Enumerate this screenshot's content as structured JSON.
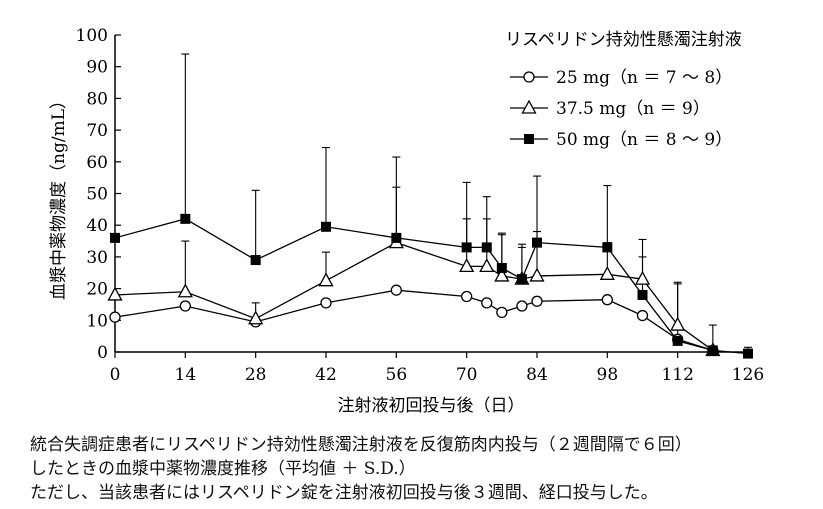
{
  "chart_data": {
    "type": "line",
    "xlabel": "注射液初回投与後（日）",
    "ylabel": "血漿中薬物濃度（ng/mL）",
    "xlim": [
      0,
      126
    ],
    "ylim": [
      0,
      100
    ],
    "xticks": [
      0,
      14,
      28,
      42,
      56,
      70,
      84,
      98,
      112,
      126
    ],
    "yticks": [
      0,
      10,
      20,
      30,
      40,
      50,
      60,
      70,
      80,
      90,
      100
    ],
    "grid": false,
    "legend_title": "リスペリドン持効性懸濁注射液",
    "legend_position": "top-right",
    "series": [
      {
        "name": "25 mg（n ＝ 7 〜 8）",
        "marker": "circle-open",
        "x": [
          0,
          14,
          28,
          42,
          56,
          70,
          74,
          77,
          81,
          84,
          98,
          105,
          112,
          119
        ],
        "y": [
          11,
          14.5,
          9.5,
          15.5,
          19.5,
          17.5,
          15.5,
          12.5,
          14.5,
          16,
          16.5,
          11.5,
          4,
          0.5
        ],
        "err": [
          0,
          0,
          0,
          0,
          0,
          0,
          0,
          0,
          0,
          0,
          0,
          0,
          0,
          0
        ]
      },
      {
        "name": "37.5 mg（n ＝ 9）",
        "marker": "triangle-open",
        "x": [
          0,
          14,
          28,
          42,
          56,
          70,
          74,
          77,
          81,
          84,
          98,
          105,
          112,
          119
        ],
        "y": [
          18,
          19,
          10.5,
          22.5,
          34.5,
          27,
          27,
          24,
          23,
          24,
          24.5,
          23,
          8.5,
          0.5
        ],
        "err": [
          0,
          16,
          5,
          9,
          17.5,
          15,
          15,
          13,
          10,
          14,
          10,
          7,
          13,
          0
        ]
      },
      {
        "name": "50 mg（n ＝ 8 〜 9）",
        "marker": "square-filled",
        "x": [
          0,
          14,
          28,
          42,
          56,
          70,
          74,
          77,
          81,
          84,
          98,
          105,
          112,
          119,
          126
        ],
        "y": [
          36,
          42,
          29,
          39.5,
          36,
          33,
          33,
          26.5,
          23,
          34.5,
          33,
          18,
          3.5,
          0.5,
          -0.5
        ],
        "err": [
          0,
          52,
          22,
          25,
          25.5,
          20.5,
          16,
          11,
          11,
          21,
          19.5,
          17.5,
          18.5,
          8,
          2
        ]
      }
    ]
  },
  "caption": {
    "line1": "統合失調症患者にリスペリドン持効性懸濁注射液を反復筋肉内投与（２週間隔で６回）",
    "line2": "したときの血漿中薬物濃度推移（平均値 ＋ S.D.）",
    "line3": "ただし、当該患者にはリスペリドン錠を注射液初回投与後３週間、経口投与した。"
  }
}
